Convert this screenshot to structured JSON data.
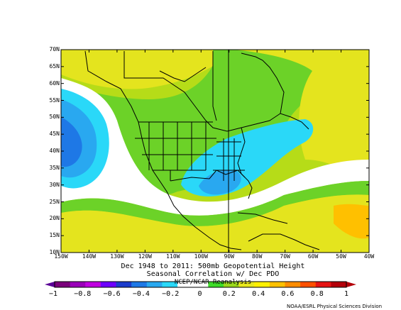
{
  "map": {
    "lat_labels": [
      "70N",
      "65N",
      "60N",
      "55N",
      "50N",
      "45N",
      "40N",
      "35N",
      "30N",
      "25N",
      "20N",
      "15N",
      "10N"
    ],
    "lon_labels": [
      "150W",
      "140W",
      "130W",
      "120W",
      "110W",
      "100W",
      "90W",
      "80W",
      "70W",
      "60W",
      "50W",
      "40W"
    ],
    "extent": {
      "lon_min": -150,
      "lon_max": -40,
      "lat_min": 10,
      "lat_max": 70
    },
    "reference_meridian": "90W",
    "variable": "500mb Geopotential Height",
    "field": "correlation"
  },
  "caption": {
    "line1": "Dec 1948 to 2011: 500mb Geopotential Height",
    "line2": "Seasonal Correlation w/ Dec PDO",
    "line3": "NCEP/NCAR Reanalysis"
  },
  "colorbar": {
    "labels": [
      "-1",
      "-0.8",
      "-0.6",
      "-0.4",
      "-0.2",
      "0",
      "0.2",
      "0.4",
      "0.6",
      "0.8",
      "1"
    ],
    "colors": [
      "#7a007a",
      "#9900b8",
      "#c000e0",
      "#6e00ff",
      "#1c3ccc",
      "#1e78e6",
      "#29a8f0",
      "#2ad8f8",
      "#ffffff",
      "#ffffff",
      "#3ddc28",
      "#9ad81c",
      "#e8e81e",
      "#fff000",
      "#ffc000",
      "#ff8c00",
      "#ff5000",
      "#e61414",
      "#b4000a"
    ],
    "end_colors": {
      "low": "#5a0096",
      "high": "#b4000a"
    }
  },
  "credit": "NOAA/ESRL Physical Sciences Division"
}
